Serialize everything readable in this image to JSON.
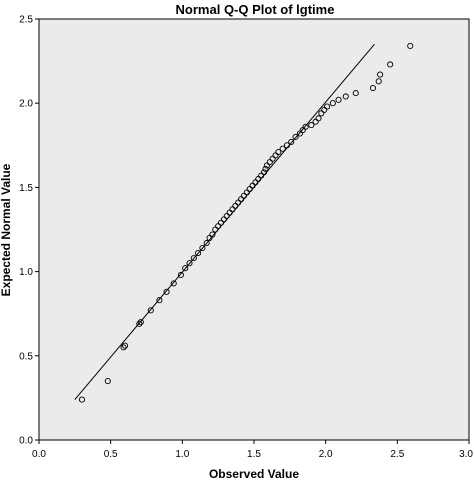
{
  "chart_data": {
    "type": "scatter",
    "title": "Normal Q-Q Plot of lgtime",
    "xlabel": "Observed Value",
    "ylabel": "Expected Normal Value",
    "xlim": [
      0.0,
      3.0
    ],
    "ylim": [
      0.0,
      2.5
    ],
    "x_ticks": [
      "0.0",
      "0.5",
      "1.0",
      "1.5",
      "2.0",
      "2.5",
      "3.0"
    ],
    "y_ticks": [
      "0.0",
      "0.5",
      "1.0",
      "1.5",
      "2.0",
      "2.5"
    ],
    "grid": false,
    "legend": "none",
    "plot_background": "#ebebeb",
    "marker_color": "#000000",
    "reference_line": {
      "x": [
        0.25,
        2.34
      ],
      "y": [
        0.24,
        2.35
      ]
    },
    "points": [
      {
        "x": 0.3,
        "y": 0.24
      },
      {
        "x": 0.48,
        "y": 0.35
      },
      {
        "x": 0.59,
        "y": 0.55
      },
      {
        "x": 0.6,
        "y": 0.56
      },
      {
        "x": 0.7,
        "y": 0.69
      },
      {
        "x": 0.71,
        "y": 0.7
      },
      {
        "x": 0.78,
        "y": 0.77
      },
      {
        "x": 0.84,
        "y": 0.83
      },
      {
        "x": 0.89,
        "y": 0.88
      },
      {
        "x": 0.94,
        "y": 0.93
      },
      {
        "x": 0.99,
        "y": 0.98
      },
      {
        "x": 1.02,
        "y": 1.02
      },
      {
        "x": 1.05,
        "y": 1.05
      },
      {
        "x": 1.08,
        "y": 1.08
      },
      {
        "x": 1.11,
        "y": 1.11
      },
      {
        "x": 1.14,
        "y": 1.14
      },
      {
        "x": 1.17,
        "y": 1.17
      },
      {
        "x": 1.19,
        "y": 1.2
      },
      {
        "x": 1.21,
        "y": 1.22
      },
      {
        "x": 1.23,
        "y": 1.25
      },
      {
        "x": 1.25,
        "y": 1.27
      },
      {
        "x": 1.27,
        "y": 1.29
      },
      {
        "x": 1.29,
        "y": 1.31
      },
      {
        "x": 1.31,
        "y": 1.33
      },
      {
        "x": 1.33,
        "y": 1.35
      },
      {
        "x": 1.35,
        "y": 1.37
      },
      {
        "x": 1.37,
        "y": 1.39
      },
      {
        "x": 1.39,
        "y": 1.41
      },
      {
        "x": 1.41,
        "y": 1.43
      },
      {
        "x": 1.43,
        "y": 1.45
      },
      {
        "x": 1.45,
        "y": 1.47
      },
      {
        "x": 1.47,
        "y": 1.49
      },
      {
        "x": 1.49,
        "y": 1.51
      },
      {
        "x": 1.51,
        "y": 1.53
      },
      {
        "x": 1.53,
        "y": 1.55
      },
      {
        "x": 1.55,
        "y": 1.57
      },
      {
        "x": 1.57,
        "y": 1.59
      },
      {
        "x": 1.58,
        "y": 1.61
      },
      {
        "x": 1.59,
        "y": 1.63
      },
      {
        "x": 1.61,
        "y": 1.65
      },
      {
        "x": 1.63,
        "y": 1.67
      },
      {
        "x": 1.65,
        "y": 1.69
      },
      {
        "x": 1.67,
        "y": 1.71
      },
      {
        "x": 1.7,
        "y": 1.73
      },
      {
        "x": 1.73,
        "y": 1.75
      },
      {
        "x": 1.76,
        "y": 1.77
      },
      {
        "x": 1.79,
        "y": 1.8
      },
      {
        "x": 1.82,
        "y": 1.82
      },
      {
        "x": 1.84,
        "y": 1.84
      },
      {
        "x": 1.86,
        "y": 1.86
      },
      {
        "x": 1.9,
        "y": 1.87
      },
      {
        "x": 1.93,
        "y": 1.89
      },
      {
        "x": 1.95,
        "y": 1.91
      },
      {
        "x": 1.97,
        "y": 1.94
      },
      {
        "x": 1.99,
        "y": 1.96
      },
      {
        "x": 2.01,
        "y": 1.98
      },
      {
        "x": 2.05,
        "y": 2.0
      },
      {
        "x": 2.09,
        "y": 2.02
      },
      {
        "x": 2.14,
        "y": 2.04
      },
      {
        "x": 2.21,
        "y": 2.06
      },
      {
        "x": 2.33,
        "y": 2.09
      },
      {
        "x": 2.37,
        "y": 2.13
      },
      {
        "x": 2.38,
        "y": 2.17
      },
      {
        "x": 2.45,
        "y": 2.23
      },
      {
        "x": 2.59,
        "y": 2.34
      }
    ]
  }
}
